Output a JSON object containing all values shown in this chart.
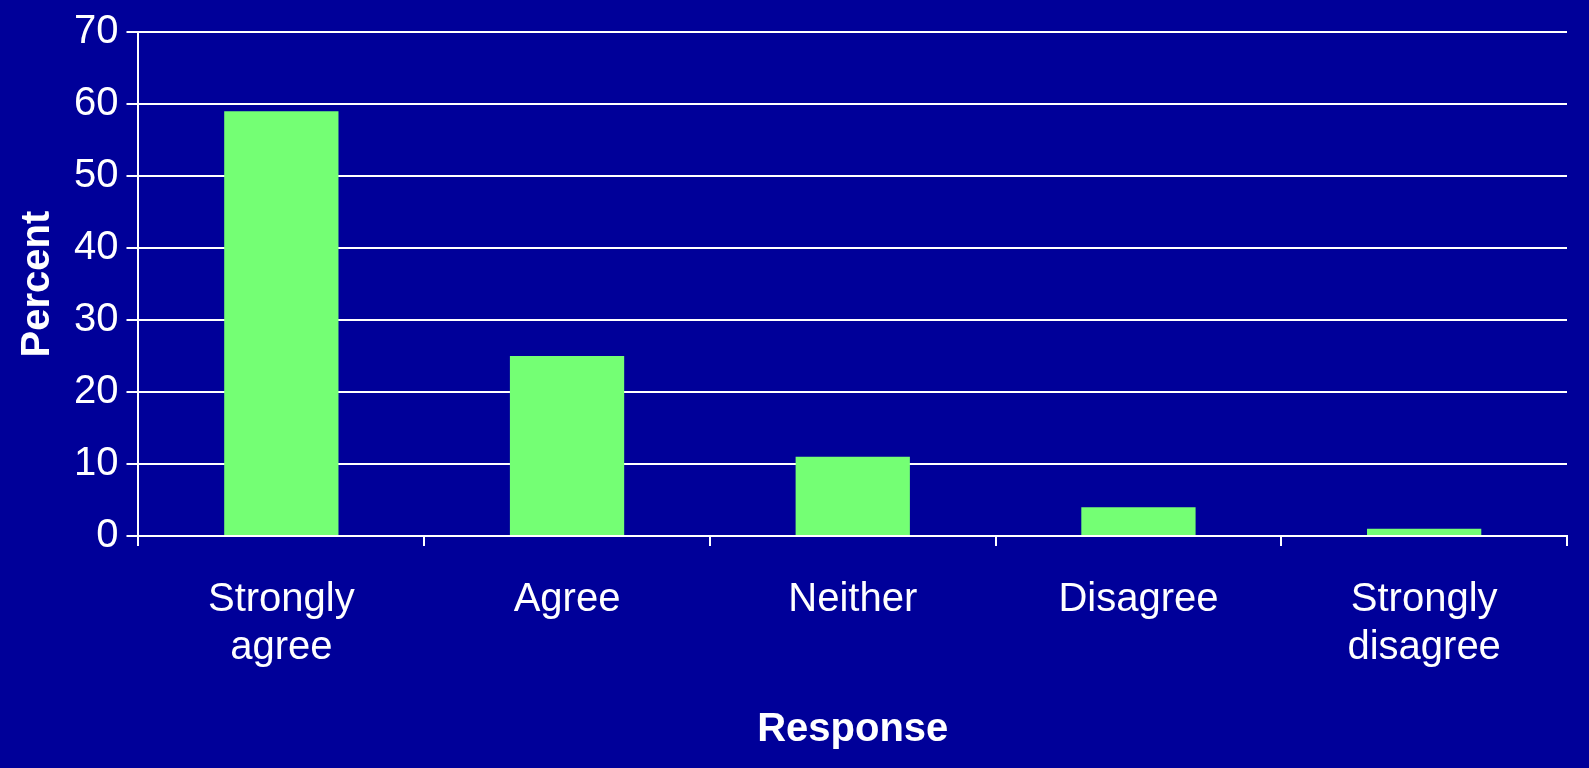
{
  "chart_data": {
    "type": "bar",
    "xlabel": "Response",
    "ylabel": "Percent",
    "categories": [
      "Strongly agree",
      "Agree",
      "Neither",
      "Disagree",
      "Strongly disagree"
    ],
    "values": [
      59,
      25,
      11,
      4,
      1
    ],
    "color": "#74ff74",
    "ylim": [
      0,
      70
    ],
    "yticks": [
      0,
      10,
      20,
      30,
      40,
      50,
      60,
      70
    ],
    "grid": "y"
  }
}
